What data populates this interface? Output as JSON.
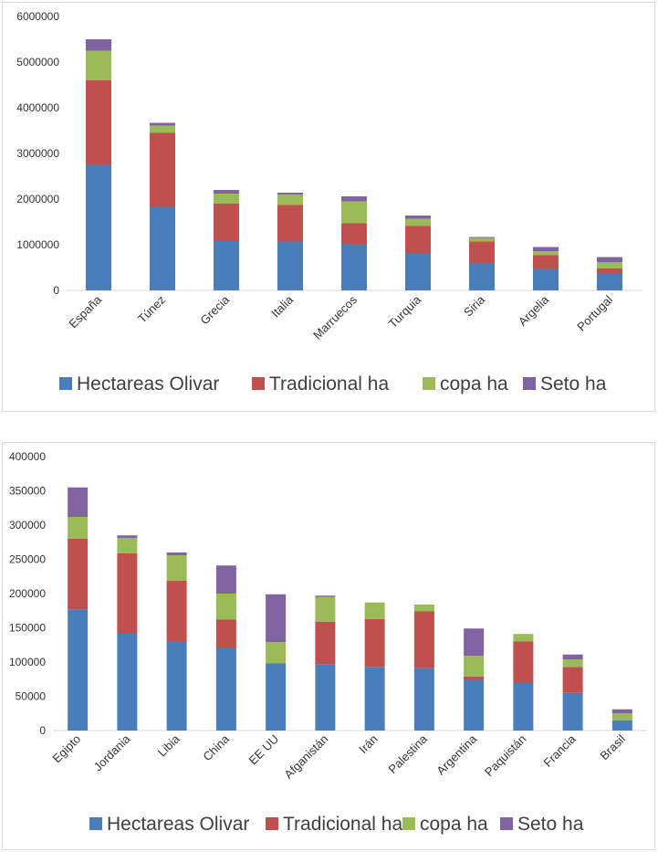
{
  "chart_data": [
    {
      "type": "bar",
      "stacked": true,
      "categories": [
        "España",
        "Túnez",
        "Grecia",
        "Italia",
        "Marruecos",
        "Turquia",
        "Siria",
        "Argelia",
        "Portugal"
      ],
      "series": [
        {
          "name": "Hectareas Olivar",
          "color": "#4a7ebb",
          "values": [
            2750000,
            1830000,
            1080000,
            1070000,
            1020000,
            810000,
            590000,
            470000,
            370000
          ]
        },
        {
          "name": "Tradicional ha",
          "color": "#c0504d",
          "values": [
            1850000,
            1620000,
            820000,
            800000,
            450000,
            600000,
            480000,
            300000,
            110000
          ]
        },
        {
          "name": "copa ha",
          "color": "#9bbb59",
          "values": [
            650000,
            160000,
            220000,
            230000,
            480000,
            160000,
            80000,
            90000,
            140000
          ]
        },
        {
          "name": "Seto ha",
          "color": "#8064a2",
          "values": [
            250000,
            60000,
            80000,
            40000,
            110000,
            70000,
            20000,
            90000,
            110000
          ]
        }
      ],
      "ylim": [
        0,
        6000000
      ],
      "yticks": [
        "0",
        "1000000",
        "2000000",
        "3000000",
        "4000000",
        "5000000",
        "6000000"
      ],
      "legend_position": "bottom",
      "grid": false
    },
    {
      "type": "bar",
      "stacked": true,
      "categories": [
        "Egipto",
        "Jordania",
        "Libia",
        "China",
        "EE UU",
        "Afganistán",
        "Irán",
        "Palestina",
        "Argentina",
        "Paquistán",
        "Francia",
        "Brasil"
      ],
      "series": [
        {
          "name": "Hectareas Olivar",
          "color": "#4a7ebb",
          "values": [
            177000,
            142000,
            130000,
            120000,
            98000,
            97000,
            93000,
            91000,
            74000,
            70000,
            55000,
            15000
          ]
        },
        {
          "name": "Tradicional ha",
          "color": "#c0504d",
          "values": [
            103000,
            117000,
            89000,
            42000,
            0,
            62000,
            70000,
            83000,
            5000,
            60000,
            38000,
            0
          ]
        },
        {
          "name": "copa ha",
          "color": "#9bbb59",
          "values": [
            32000,
            22000,
            37000,
            38000,
            31000,
            36000,
            24000,
            10000,
            30000,
            11000,
            11000,
            10000
          ]
        },
        {
          "name": "Seto ha",
          "color": "#8064a2",
          "values": [
            43000,
            4000,
            4000,
            41000,
            70000,
            2000,
            0,
            0,
            40000,
            0,
            7000,
            6000
          ]
        }
      ],
      "ylim": [
        0,
        400000
      ],
      "yticks": [
        "0",
        "50000",
        "100000",
        "150000",
        "200000",
        "250000",
        "300000",
        "350000",
        "400000"
      ],
      "legend_position": "bottom",
      "grid": false
    }
  ]
}
